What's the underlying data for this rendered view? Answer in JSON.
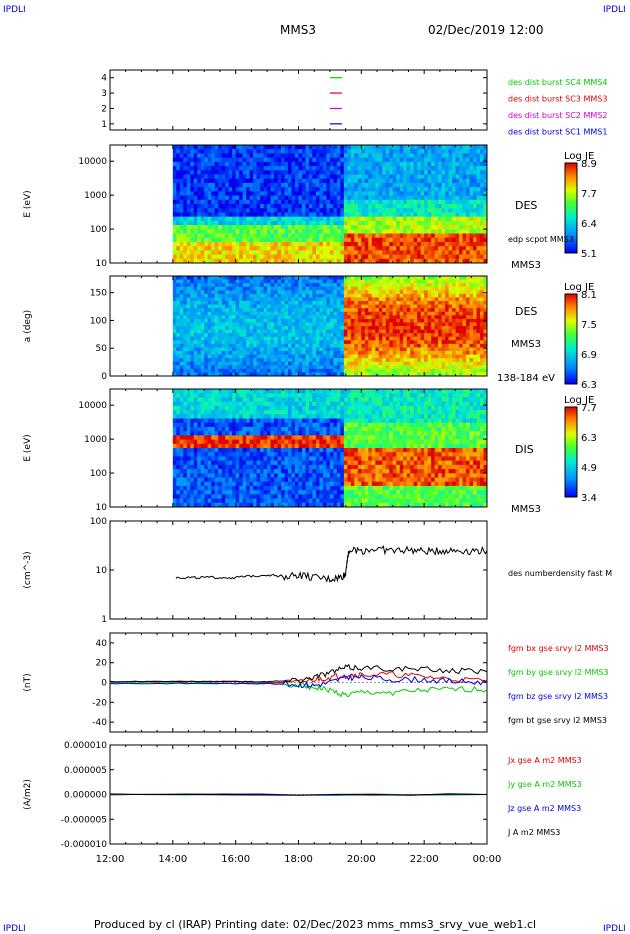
{
  "corners": {
    "tl": "IPDLI",
    "tr": "IPDLI",
    "bl": "IPDLI",
    "br": "IPDLI"
  },
  "header": {
    "spacecraft": "MMS3",
    "datetime": "02/Dec/2019 12:00"
  },
  "footer": {
    "text": "Produced by cl (IRAP)   Printing date: 02/Dec/2023   mms_mms3_srvy_vue_web1.cl"
  },
  "colors": {
    "mms1": "#0000cc",
    "mms2": "#cc00cc",
    "mms3": "#dd0000",
    "mms4": "#00cc00",
    "bx": "#dd0000",
    "by": "#00cc00",
    "bz": "#0000dd",
    "bt": "#000000"
  },
  "chart_data": {
    "type": "line",
    "time_axis": {
      "start": "12:00",
      "end": "00:00",
      "ticks": [
        "12:00",
        "14:00",
        "16:00",
        "18:00",
        "20:00",
        "22:00",
        "00:00"
      ]
    },
    "panels": [
      {
        "id": "burst",
        "type": "scatter",
        "yticks": [
          "1",
          "2",
          "3",
          "4"
        ],
        "ylim": [
          0.6,
          4.5
        ],
        "legend": [
          {
            "text": "des dist burst SC1 MMS1",
            "color": "#0000cc",
            "y": 1
          },
          {
            "text": "des dist burst SC2 MMS2",
            "color": "#cc00cc",
            "y": 2
          },
          {
            "text": "des dist burst SC3 MMS3",
            "color": "#dd0000",
            "y": 3
          },
          {
            "text": "des dist burst SC4 MMS4",
            "color": "#00cc00",
            "y": 4
          }
        ],
        "marks_time": 19.0
      },
      {
        "id": "des_energy",
        "type": "heatmap",
        "ylabel": "E (eV)",
        "yscale": "log",
        "ylim": [
          10,
          30000
        ],
        "yticks": [
          "10",
          "100",
          "1000",
          "10000"
        ],
        "data_start": 14.0,
        "transition": 19.5,
        "side_labels": [
          "DES",
          "edp scpot MMS3",
          "MMS3"
        ],
        "colorbar": {
          "title": "Log JE",
          "ticks": [
            "8.9",
            "7.7",
            "6.4",
            "5.1"
          ]
        }
      },
      {
        "id": "des_pitch",
        "type": "heatmap",
        "ylabel": "a (deg)",
        "ylim": [
          0,
          180
        ],
        "yticks": [
          "0",
          "50",
          "100",
          "150"
        ],
        "data_start": 14.0,
        "transition": 19.5,
        "side_labels": [
          "DES",
          "MMS3",
          "138-184 eV"
        ],
        "colorbar": {
          "title": "Log JE",
          "ticks": [
            "8.1",
            "7.5",
            "6.9",
            "6.3"
          ]
        }
      },
      {
        "id": "dis_energy",
        "type": "heatmap",
        "ylabel": "E (eV)",
        "yscale": "log",
        "ylim": [
          10,
          30000
        ],
        "yticks": [
          "10",
          "100",
          "1000",
          "10000"
        ],
        "data_start": 14.0,
        "transition": 19.5,
        "side_labels": [
          "DIS",
          "MMS3"
        ],
        "colorbar": {
          "title": "Log JE",
          "ticks": [
            "7.7",
            "6.3",
            "4.9",
            "3.4"
          ]
        }
      },
      {
        "id": "density",
        "type": "line",
        "ylabel": "(cm^-3)",
        "yscale": "log",
        "ylim": [
          1,
          100
        ],
        "yticks": [
          "1",
          "10",
          "100"
        ],
        "series": [
          {
            "name": "des numberdensity fast M",
            "color": "#000000",
            "x": [
              14.1,
              14.5,
              15.0,
              15.5,
              16.0,
              16.5,
              17.0,
              17.5,
              18.0,
              18.5,
              19.0,
              19.3,
              19.5,
              19.6,
              20.0,
              20.5,
              21.0,
              21.5,
              22.0,
              22.5,
              23.0,
              23.5,
              24.0
            ],
            "values": [
              7,
              7,
              7,
              7,
              7,
              7.5,
              8,
              7.5,
              8,
              7,
              6.5,
              7,
              8,
              25,
              25,
              27,
              25,
              26,
              24,
              25,
              25,
              25,
              25
            ]
          }
        ]
      },
      {
        "id": "fgm",
        "type": "line",
        "ylabel": "(nT)",
        "ylim": [
          -50,
          50
        ],
        "yticks": [
          "-40",
          "-20",
          "0",
          "20",
          "40"
        ],
        "series": [
          {
            "name": "fgm bx gse srvy l2 MMS3",
            "color": "#dd0000",
            "x": [
              12,
              14,
              16,
              17,
              18,
              18.5,
              19,
              19.5,
              20,
              21,
              22,
              23,
              24
            ],
            "values": [
              1,
              1,
              1,
              0,
              0,
              3,
              5,
              8,
              8,
              8,
              6,
              3,
              2
            ]
          },
          {
            "name": "fgm by gse srvy l2 MMS3",
            "color": "#00cc00",
            "x": [
              12,
              14,
              16,
              17,
              18,
              18.5,
              19,
              19.5,
              20,
              21,
              22,
              23,
              24
            ],
            "values": [
              0,
              0,
              -1,
              -1,
              -2,
              -5,
              -8,
              -13,
              -10,
              -10,
              -8,
              -7,
              -7
            ]
          },
          {
            "name": "fgm bz gse srvy l2 MMS3",
            "color": "#0000dd",
            "x": [
              12,
              14,
              16,
              17,
              18,
              18.5,
              19,
              19.5,
              20,
              21,
              22,
              23,
              24
            ],
            "values": [
              -1,
              -1,
              -1,
              -1,
              -2,
              -3,
              0,
              5,
              5,
              3,
              3,
              1,
              0
            ]
          },
          {
            "name": "fgm bt gse srvy l2 MMS3",
            "color": "#000000",
            "x": [
              12,
              14,
              16,
              17,
              18,
              18.5,
              19,
              19.5,
              20,
              21,
              22,
              23,
              24
            ],
            "values": [
              1,
              1,
              1,
              1,
              2,
              6,
              10,
              15,
              15,
              14,
              13,
              12,
              11
            ]
          }
        ]
      },
      {
        "id": "current",
        "type": "line",
        "ylabel": "(A/m2)",
        "ylim": [
          -1e-05,
          1e-05
        ],
        "yticks": [
          "-0.000010",
          "-0.000005",
          "0.000000",
          "0.000005",
          "0.000010"
        ],
        "series": [
          {
            "name": "Jx gse A m2 MMS3",
            "color": "#dd0000",
            "x": [
              12,
              24
            ],
            "values": [
              0,
              0
            ]
          },
          {
            "name": "Jy gse A m2 MMS3",
            "color": "#00cc00",
            "x": [
              12,
              24
            ],
            "values": [
              0,
              0
            ]
          },
          {
            "name": "Jz gse A m2 MMS3",
            "color": "#0000dd",
            "x": [
              12,
              24
            ],
            "values": [
              0,
              0
            ]
          },
          {
            "name": "J A m2 MMS3",
            "color": "#000000",
            "x": [
              12,
              24
            ],
            "values": [
              0,
              0
            ]
          }
        ]
      }
    ]
  }
}
